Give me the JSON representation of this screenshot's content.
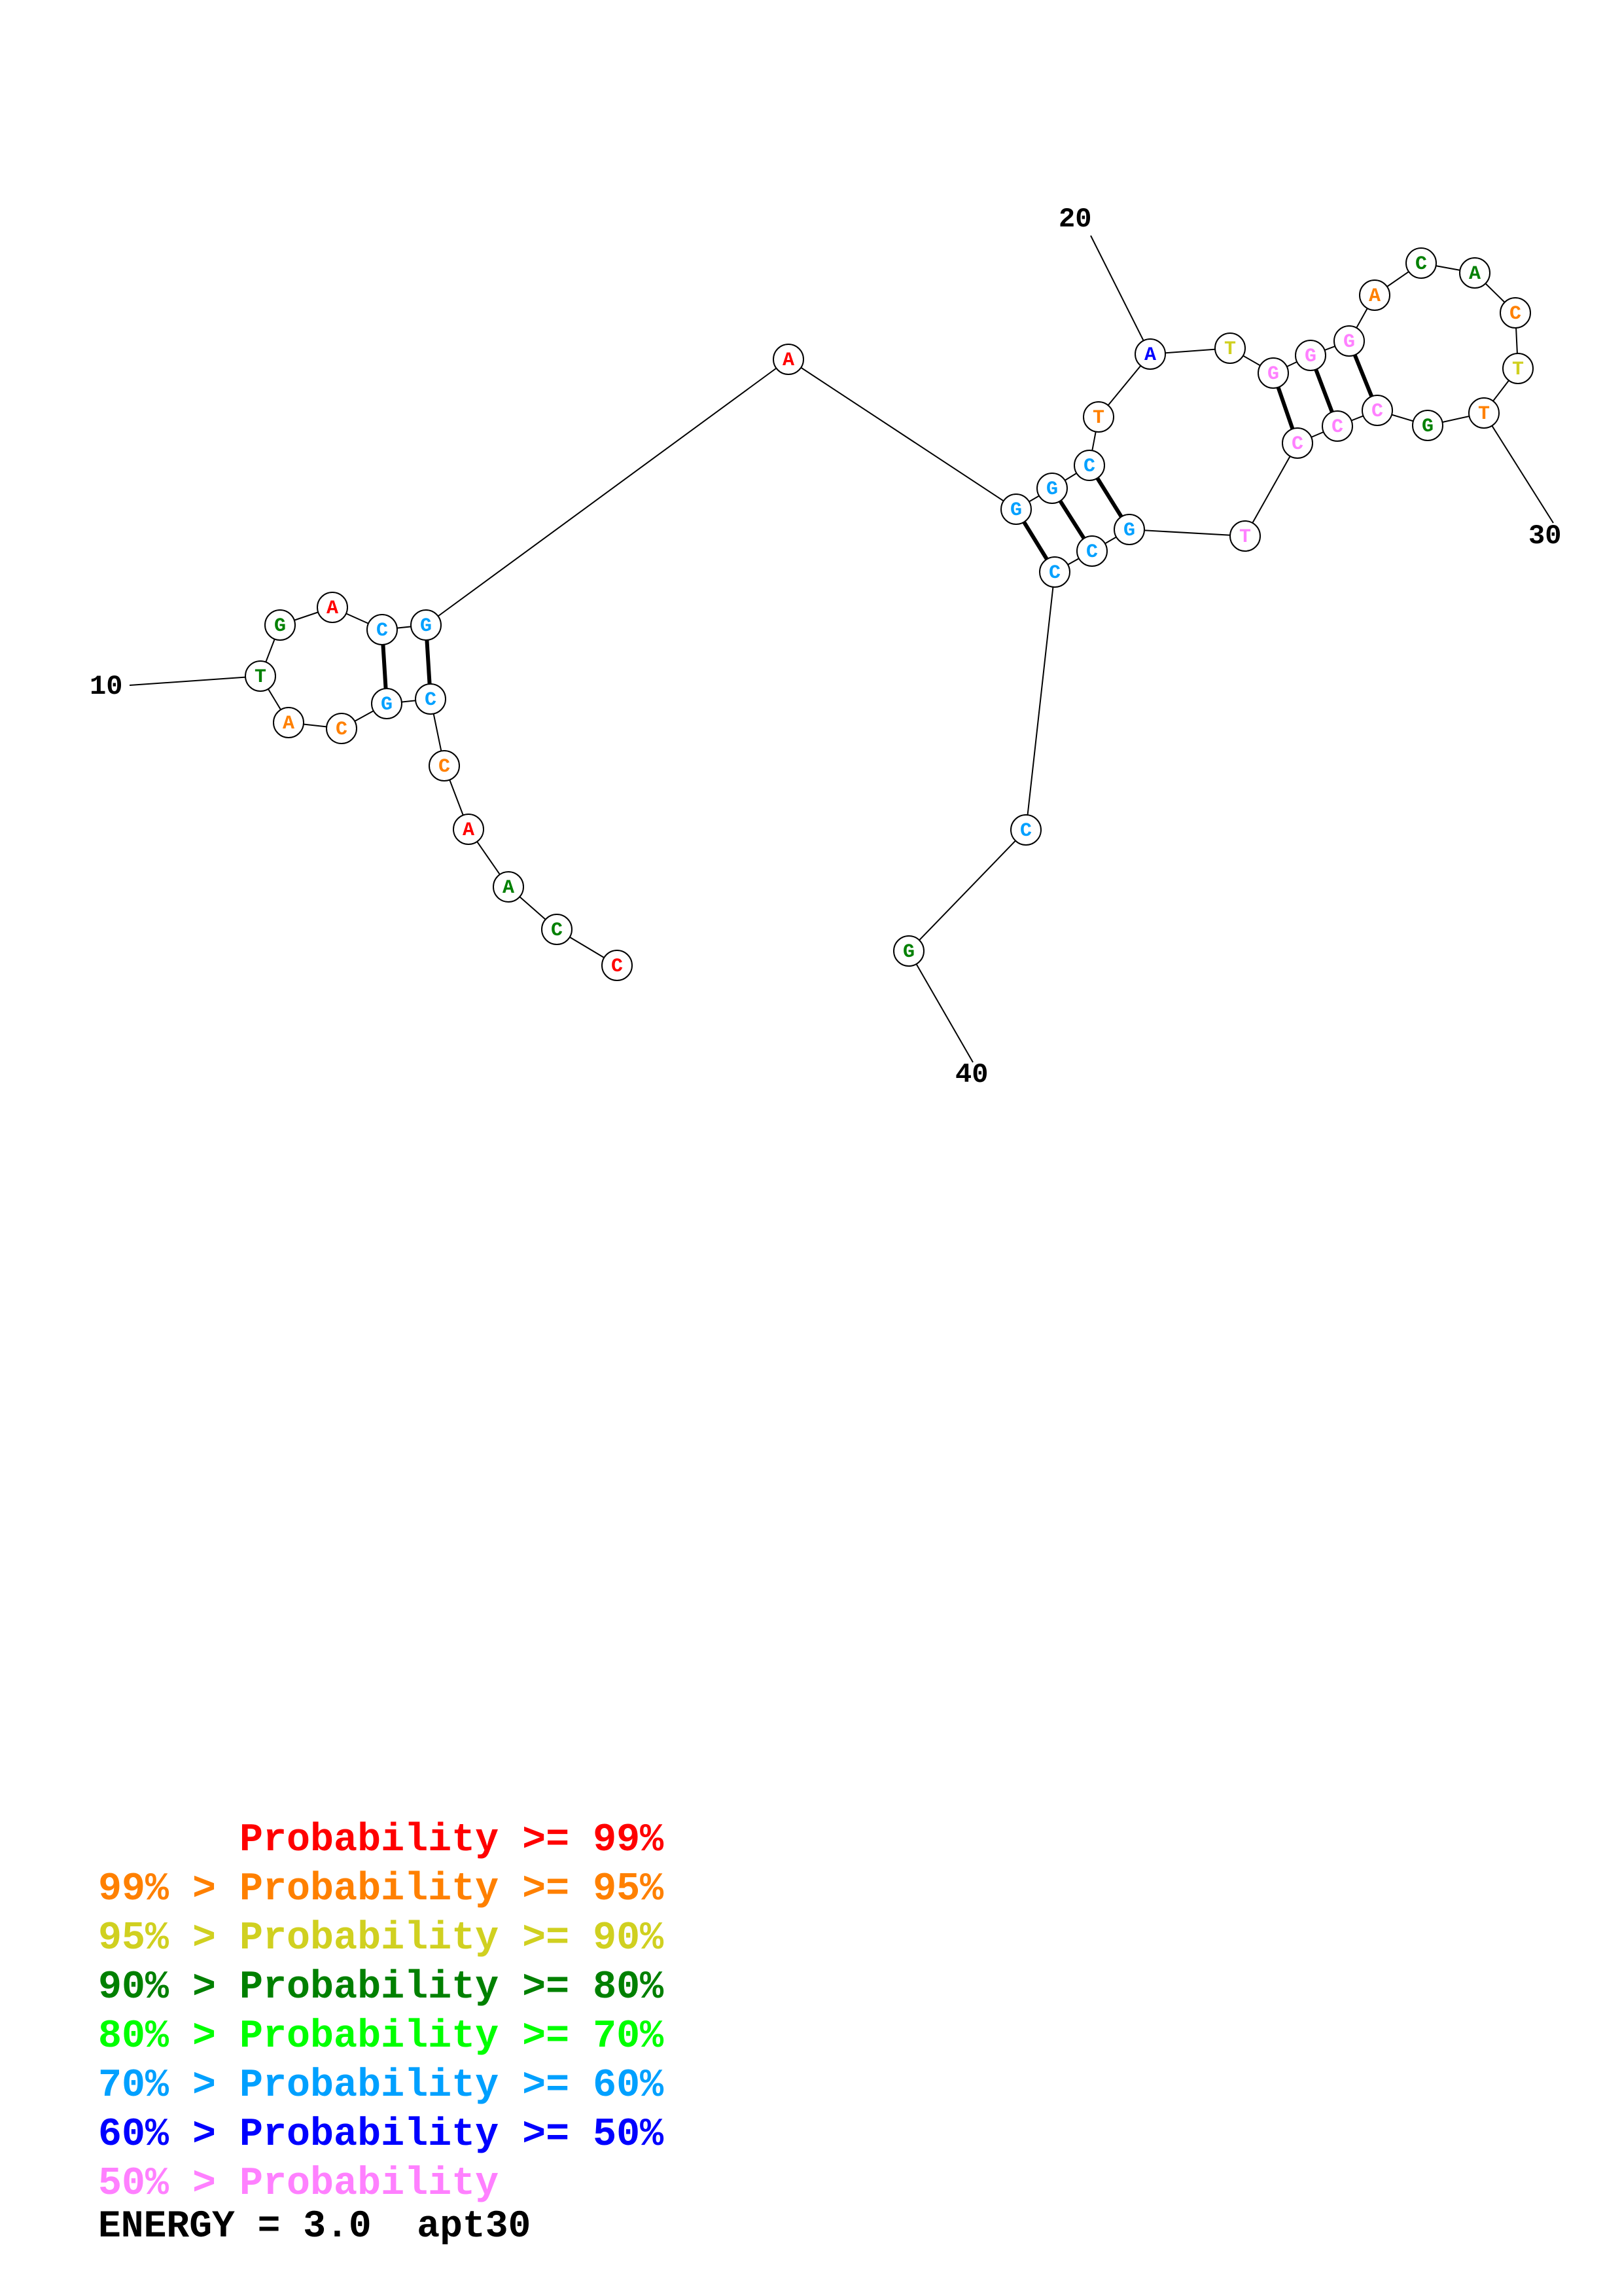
{
  "nucleotides": [
    {
      "i": 1,
      "base": "C",
      "color": "#ff0000"
    },
    {
      "i": 2,
      "base": "C",
      "color": "#008000"
    },
    {
      "i": 3,
      "base": "A",
      "color": "#008000"
    },
    {
      "i": 4,
      "base": "A",
      "color": "#ff0000"
    },
    {
      "i": 5,
      "base": "C",
      "color": "#ff8000"
    },
    {
      "i": 6,
      "base": "C",
      "color": "#00a0ff"
    },
    {
      "i": 7,
      "base": "G",
      "color": "#00a0ff"
    },
    {
      "i": 8,
      "base": "C",
      "color": "#ff8000"
    },
    {
      "i": 9,
      "base": "A",
      "color": "#ff8000"
    },
    {
      "i": 10,
      "base": "T",
      "color": "#008000"
    },
    {
      "i": 11,
      "base": "G",
      "color": "#008000"
    },
    {
      "i": 12,
      "base": "A",
      "color": "#ff0000"
    },
    {
      "i": 13,
      "base": "C",
      "color": "#00a0ff"
    },
    {
      "i": 14,
      "base": "G",
      "color": "#00a0ff"
    },
    {
      "i": 15,
      "base": "A",
      "color": "#ff0000"
    },
    {
      "i": 16,
      "base": "G",
      "color": "#00a0ff"
    },
    {
      "i": 17,
      "base": "G",
      "color": "#00a0ff"
    },
    {
      "i": 18,
      "base": "C",
      "color": "#00a0ff"
    },
    {
      "i": 19,
      "base": "T",
      "color": "#ff8000"
    },
    {
      "i": 20,
      "base": "A",
      "color": "#0000ff"
    },
    {
      "i": 21,
      "base": "T",
      "color": "#d0d020"
    },
    {
      "i": 22,
      "base": "G",
      "color": "#ff80ff"
    },
    {
      "i": 23,
      "base": "G",
      "color": "#ff80ff"
    },
    {
      "i": 24,
      "base": "G",
      "color": "#ff80ff"
    },
    {
      "i": 25,
      "base": "A",
      "color": "#ff8000"
    },
    {
      "i": 26,
      "base": "C",
      "color": "#008000"
    },
    {
      "i": 27,
      "base": "A",
      "color": "#008000"
    },
    {
      "i": 28,
      "base": "C",
      "color": "#ff8000"
    },
    {
      "i": 29,
      "base": "T",
      "color": "#d0d020"
    },
    {
      "i": 30,
      "base": "T",
      "color": "#ff8000"
    },
    {
      "i": 31,
      "base": "G",
      "color": "#008000"
    },
    {
      "i": 32,
      "base": "C",
      "color": "#ff80ff"
    },
    {
      "i": 33,
      "base": "C",
      "color": "#ff80ff"
    },
    {
      "i": 34,
      "base": "C",
      "color": "#ff80ff"
    },
    {
      "i": 35,
      "base": "T",
      "color": "#ff80ff"
    },
    {
      "i": 36,
      "base": "G",
      "color": "#00a0ff"
    },
    {
      "i": 37,
      "base": "C",
      "color": "#00a0ff"
    },
    {
      "i": 38,
      "base": "C",
      "color": "#00a0ff"
    },
    {
      "i": 39,
      "base": "C",
      "color": "#00a0ff"
    },
    {
      "i": 40,
      "base": "G",
      "color": "#008000"
    }
  ],
  "pairs": [
    [
      6,
      14
    ],
    [
      7,
      13
    ],
    [
      16,
      38
    ],
    [
      17,
      37
    ],
    [
      18,
      36
    ],
    [
      22,
      34
    ],
    [
      23,
      33
    ],
    [
      24,
      32
    ]
  ],
  "position_labels": [
    "10",
    "20",
    "30",
    "40"
  ],
  "legend": [
    {
      "prefix": "    ",
      "text": "Probability >= 99%",
      "color": "#ff0000"
    },
    {
      "prefix": "99% > ",
      "text": "Probability >= 95%",
      "color": "#ff8000"
    },
    {
      "prefix": "95% > ",
      "text": "Probability >= 90%",
      "color": "#d0d020"
    },
    {
      "prefix": "90% > ",
      "text": "Probability >= 80%",
      "color": "#008000"
    },
    {
      "prefix": "80% > ",
      "text": "Probability >= 70%",
      "color": "#00ff00"
    },
    {
      "prefix": "70% > ",
      "text": "Probability >= 60%",
      "color": "#00a0ff"
    },
    {
      "prefix": "60% > ",
      "text": "Probability >= 50%",
      "color": "#0000ff"
    },
    {
      "prefix": "50% > ",
      "text": "Probability",
      "color": "#ff80ff"
    }
  ],
  "energy": {
    "label": "ENERGY = 3.0",
    "name": "apt30"
  }
}
